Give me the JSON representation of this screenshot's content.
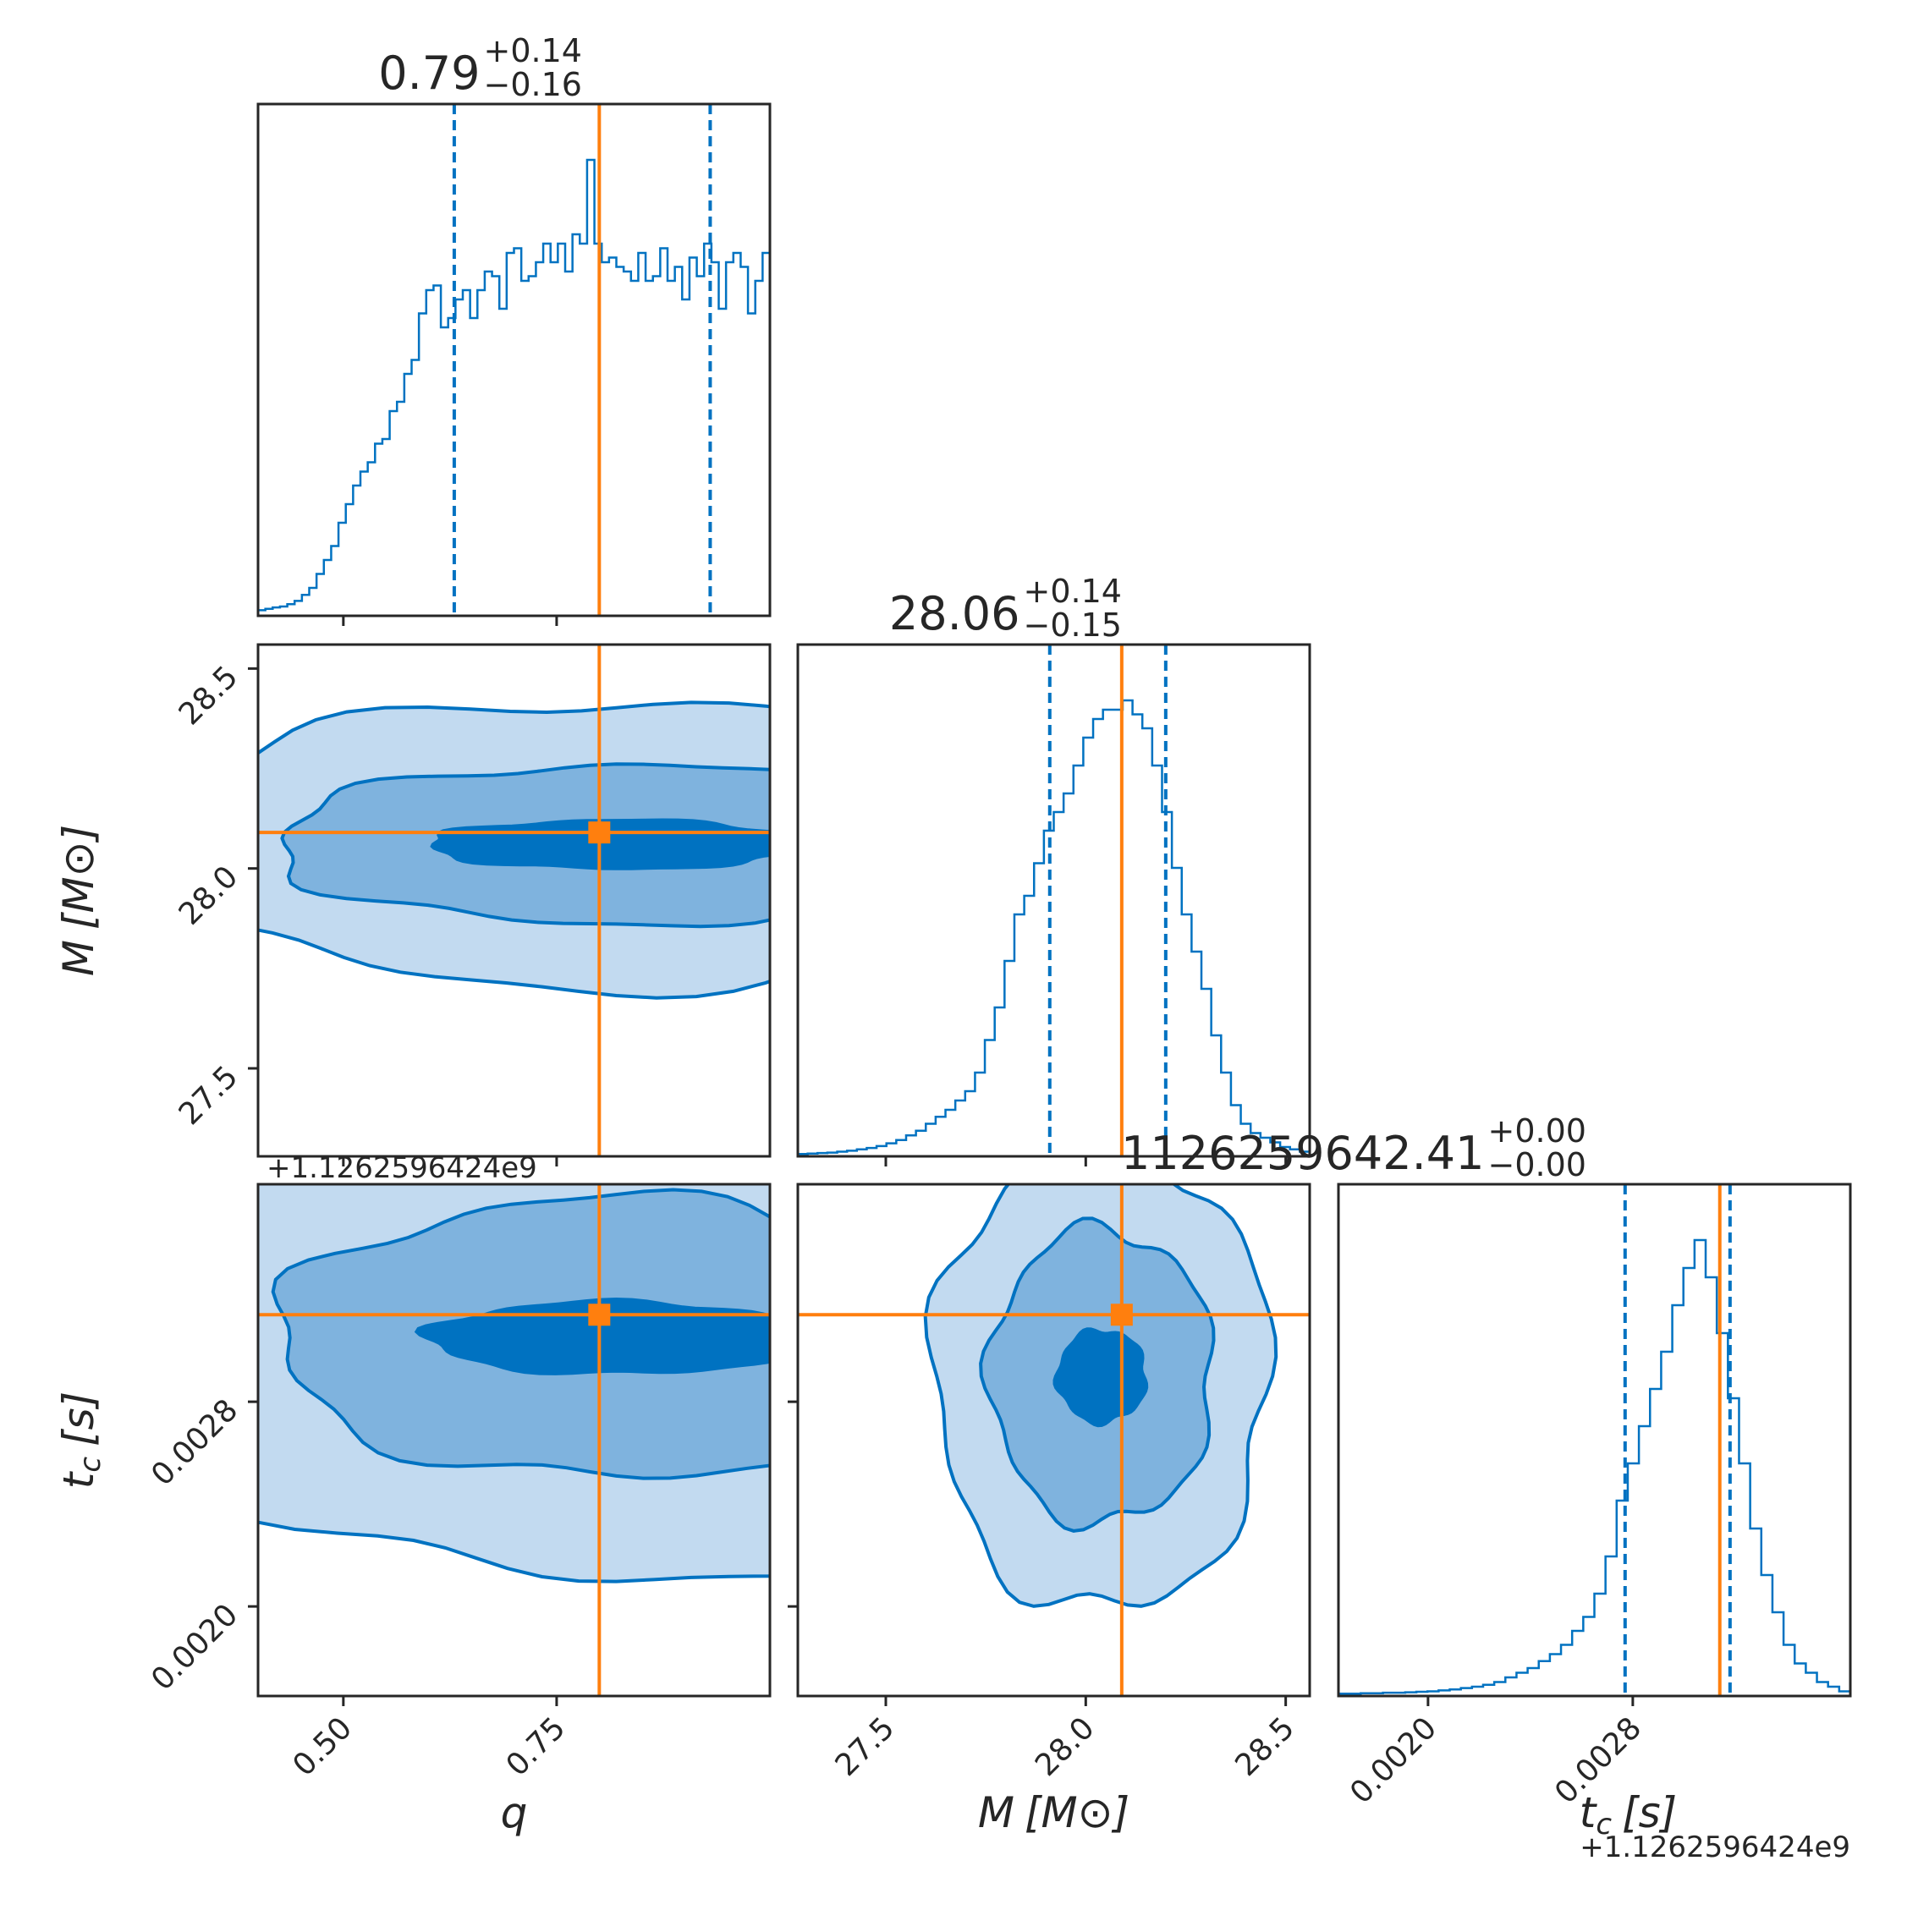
{
  "colors": {
    "posterior": "#0072c1",
    "truth": "#ff7f0e",
    "fill_light": "#c2daf0",
    "fill_mid": "#7fb3de",
    "fill_dark": "#0072c1",
    "axes": "#262626"
  },
  "chart_data": {
    "type": "corner",
    "parameters": [
      {
        "key": "q",
        "label_main": "q",
        "label_sub": "",
        "label_unit": "",
        "range": [
          0.4,
          1.0
        ],
        "ticks": [
          0.5,
          0.75
        ],
        "tick_labels": [
          "0.50",
          "0.75"
        ],
        "truth": 0.8,
        "quantiles": [
          0.63,
          0.93
        ],
        "title_value": "0.79",
        "title_plus": "+0.14",
        "title_minus": "−0.16",
        "offset_text": "",
        "hist": [
          0.012,
          0.015,
          0.018,
          0.02,
          0.025,
          0.032,
          0.045,
          0.06,
          0.09,
          0.12,
          0.15,
          0.2,
          0.24,
          0.28,
          0.31,
          0.33,
          0.37,
          0.38,
          0.44,
          0.46,
          0.52,
          0.55,
          0.65,
          0.7,
          0.71,
          0.62,
          0.64,
          0.68,
          0.7,
          0.64,
          0.7,
          0.74,
          0.73,
          0.66,
          0.78,
          0.79,
          0.72,
          0.73,
          0.76,
          0.8,
          0.76,
          0.8,
          0.74,
          0.82,
          0.8,
          0.98,
          0.8,
          0.76,
          0.77,
          0.75,
          0.74,
          0.72,
          0.78,
          0.72,
          0.73,
          0.79,
          0.72,
          0.75,
          0.68,
          0.77,
          0.73,
          0.8,
          0.76,
          0.66,
          0.76,
          0.78,
          0.75,
          0.65,
          0.72,
          0.78
        ]
      },
      {
        "key": "M",
        "label_main": "M",
        "label_sub": "",
        "label_unit": "[M⊙]",
        "range": [
          27.28,
          28.56
        ],
        "ticks": [
          27.5,
          28.0,
          28.5
        ],
        "tick_labels": [
          "27.5",
          "28.0",
          "28.5"
        ],
        "truth": 28.09,
        "quantiles": [
          27.91,
          28.2
        ],
        "title_value": "28.06",
        "title_plus": "+0.14",
        "title_minus": "−0.15",
        "offset_text": "",
        "hist": [
          0.005,
          0.006,
          0.007,
          0.008,
          0.01,
          0.012,
          0.015,
          0.018,
          0.022,
          0.028,
          0.035,
          0.045,
          0.055,
          0.07,
          0.085,
          0.1,
          0.12,
          0.14,
          0.18,
          0.25,
          0.32,
          0.42,
          0.52,
          0.56,
          0.63,
          0.7,
          0.74,
          0.78,
          0.84,
          0.9,
          0.94,
          0.96,
          0.96,
          0.98,
          0.95,
          0.92,
          0.84,
          0.74,
          0.62,
          0.52,
          0.44,
          0.36,
          0.26,
          0.18,
          0.11,
          0.07,
          0.05,
          0.04,
          0.03,
          0.02,
          0.015,
          0.01
        ]
      },
      {
        "key": "tc",
        "label_main": "t",
        "label_sub": "c",
        "label_unit": "[s]",
        "range": [
          0.00165,
          0.00365
        ],
        "ticks": [
          0.002,
          0.0028
        ],
        "tick_labels": [
          "0.0020",
          "0.0028"
        ],
        "truth": 0.00314,
        "quantiles": [
          0.00277,
          0.00318
        ],
        "title_value": "1126259642.41",
        "title_plus": "+0.00",
        "title_minus": "−0.00",
        "offset_text": "+1.1262596424e9",
        "hist": [
          0.005,
          0.005,
          0.006,
          0.006,
          0.007,
          0.007,
          0.008,
          0.009,
          0.01,
          0.012,
          0.014,
          0.017,
          0.02,
          0.024,
          0.03,
          0.04,
          0.05,
          0.06,
          0.075,
          0.09,
          0.11,
          0.14,
          0.17,
          0.22,
          0.3,
          0.42,
          0.5,
          0.58,
          0.66,
          0.74,
          0.84,
          0.92,
          0.98,
          0.9,
          0.78,
          0.64,
          0.5,
          0.36,
          0.26,
          0.18,
          0.11,
          0.07,
          0.05,
          0.03,
          0.02,
          0.01
        ]
      }
    ],
    "pair_offset_text": "+1.1262596424e9"
  }
}
